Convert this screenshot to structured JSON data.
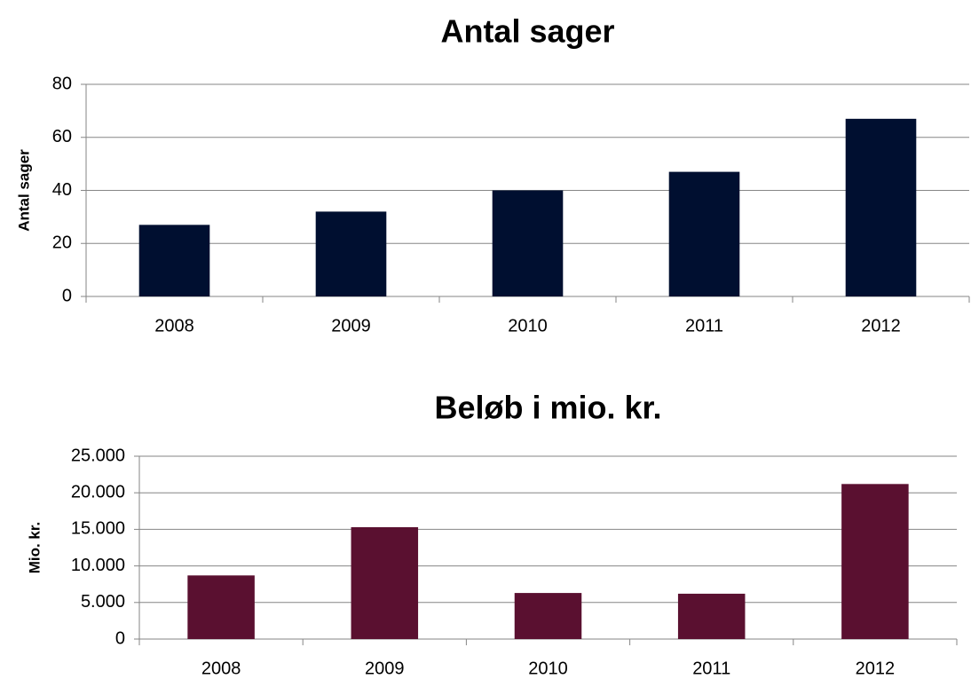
{
  "chart_data": [
    {
      "type": "bar",
      "title": "Antal sager",
      "y_label": "Antal sager",
      "categories": [
        "2008",
        "2009",
        "2010",
        "2011",
        "2012"
      ],
      "values": [
        27,
        32,
        40,
        47,
        67
      ],
      "color": "#000f30",
      "ylim": [
        0,
        80
      ],
      "yticks": [
        0,
        20,
        40,
        60,
        80
      ],
      "grid": true
    },
    {
      "type": "bar",
      "title": "Beløb i mio. kr.",
      "y_label": "Mio. kr.",
      "categories": [
        "2008",
        "2009",
        "2010",
        "2011",
        "2012"
      ],
      "values": [
        8700,
        15300,
        6300,
        6200,
        21200
      ],
      "color": "#5a1030",
      "ylim": [
        0,
        25000
      ],
      "yticks": [
        0,
        {
          "value": 5000,
          "label": "5.000"
        },
        {
          "value": 10000,
          "label": "10.000"
        },
        {
          "value": 15000,
          "label": "15.000"
        },
        {
          "value": 20000,
          "label": "20.000"
        },
        {
          "value": 25000,
          "label": "25.000"
        }
      ],
      "grid": true
    }
  ]
}
